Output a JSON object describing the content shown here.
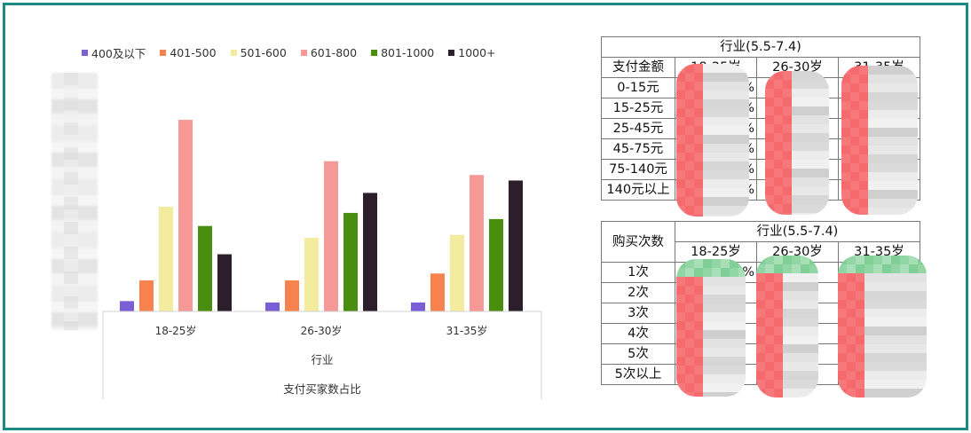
{
  "chart_data": {
    "type": "bar",
    "categories": [
      "18-25岁",
      "26-30岁",
      "31-35岁"
    ],
    "series": [
      {
        "name": "400及以下",
        "values": [
          1.5,
          1.3,
          1.3
        ]
      },
      {
        "name": "401-500",
        "values": [
          4.5,
          4.5,
          5.5
        ]
      },
      {
        "name": "501-600",
        "values": [
          15.2,
          10.7,
          11.1
        ]
      },
      {
        "name": "601-800",
        "values": [
          27.8,
          21.8,
          19.8
        ]
      },
      {
        "name": "801-1000",
        "values": [
          12.4,
          14.3,
          13.4
        ]
      },
      {
        "name": "1000+",
        "values": [
          8.3,
          17.2,
          19.0
        ]
      }
    ],
    "colors": [
      "#7b5fd6",
      "#f7824e",
      "#f3ec9f",
      "#f69896",
      "#4a8e0f",
      "#2c1f2b"
    ],
    "xlabel": "行业",
    "caption": "支付买家数占比",
    "ylim": [
      0,
      30
    ],
    "legend_position": "top",
    "grid": false
  },
  "table_pay": {
    "title": "行业(5.5-7.4)",
    "header": [
      "支付金额",
      "18-25岁",
      "26-30岁",
      "31-35岁"
    ],
    "rows": [
      "0-15元",
      "15-25元",
      "25-45元",
      "45-75元",
      "75-140元",
      "140元以上"
    ],
    "partial_visible": [
      "%",
      "%",
      "%",
      "%",
      "%",
      "%"
    ]
  },
  "table_freq": {
    "title": "行业(5.5-7.4)",
    "header": [
      "购买次数",
      "18-25岁",
      "26-30岁",
      "31-35岁"
    ],
    "rows": [
      "1次",
      "2次",
      "3次",
      "4次",
      "5次",
      "5次以上"
    ],
    "partial_visible": [
      "%"
    ]
  }
}
